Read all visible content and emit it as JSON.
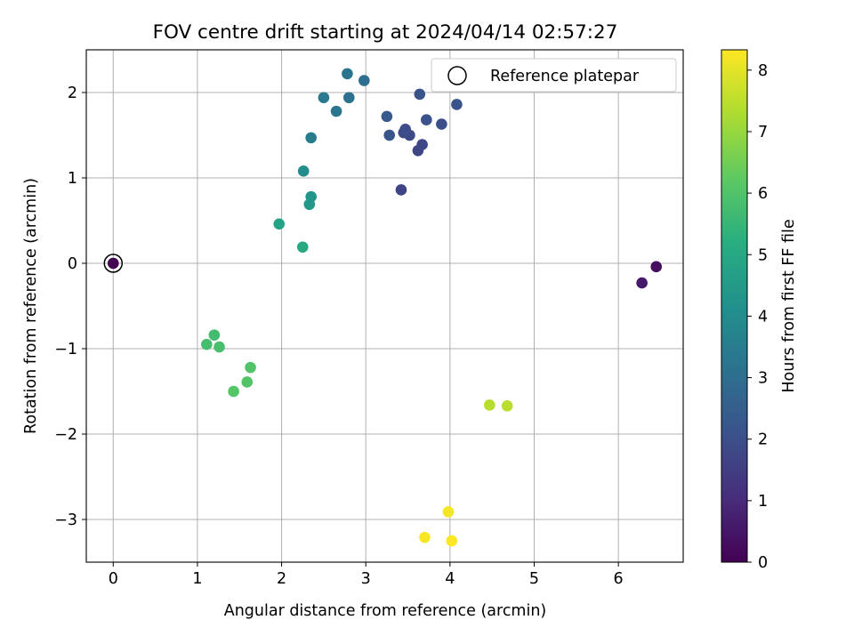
{
  "chart_data": {
    "type": "scatter",
    "title": "FOV centre drift starting at 2024/04/14 02:57:27",
    "xlabel": "Angular distance from reference (arcmin)",
    "ylabel": "Rotation from reference (arcmin)",
    "xlim": [
      -0.32,
      6.77
    ],
    "ylim": [
      -3.5,
      2.5
    ],
    "x_ticks": [
      0,
      1,
      2,
      3,
      4,
      5,
      6
    ],
    "y_ticks": [
      -3,
      -2,
      -1,
      0,
      1,
      2
    ],
    "x_tick_labels": [
      "0",
      "1",
      "2",
      "3",
      "4",
      "5",
      "6"
    ],
    "y_tick_labels": [
      "−3",
      "−2",
      "−1",
      "0",
      "1",
      "2"
    ],
    "grid": true,
    "legend": {
      "placement": "top-right",
      "entries": [
        "Reference platepar"
      ]
    },
    "colorbar": {
      "label": "Hours from first FF file",
      "range": [
        0,
        8.33
      ],
      "ticks": [
        0,
        1,
        2,
        3,
        4,
        5,
        6,
        7,
        8
      ],
      "tick_labels": [
        "0",
        "1",
        "2",
        "3",
        "4",
        "5",
        "6",
        "7",
        "8"
      ],
      "colormap": "viridis"
    },
    "reference": {
      "x": 0.0,
      "y": 0.0
    },
    "points": [
      {
        "x": 0.0,
        "y": 0.0,
        "hours": 0.0
      },
      {
        "x": 6.45,
        "y": -0.04,
        "hours": 0.3
      },
      {
        "x": 6.28,
        "y": -0.23,
        "hours": 0.6
      },
      {
        "x": 3.42,
        "y": 0.86,
        "hours": 1.7
      },
      {
        "x": 3.62,
        "y": 1.32,
        "hours": 1.75
      },
      {
        "x": 3.67,
        "y": 1.39,
        "hours": 1.8
      },
      {
        "x": 3.52,
        "y": 1.5,
        "hours": 1.85
      },
      {
        "x": 3.45,
        "y": 1.53,
        "hours": 1.9
      },
      {
        "x": 3.47,
        "y": 1.57,
        "hours": 1.95
      },
      {
        "x": 3.9,
        "y": 1.63,
        "hours": 2.0
      },
      {
        "x": 3.72,
        "y": 1.68,
        "hours": 2.05
      },
      {
        "x": 4.08,
        "y": 1.86,
        "hours": 2.1
      },
      {
        "x": 3.64,
        "y": 1.98,
        "hours": 2.15
      },
      {
        "x": 3.28,
        "y": 1.5,
        "hours": 2.2
      },
      {
        "x": 3.25,
        "y": 1.72,
        "hours": 2.3
      },
      {
        "x": 2.98,
        "y": 2.14,
        "hours": 3.0
      },
      {
        "x": 2.8,
        "y": 1.94,
        "hours": 3.1
      },
      {
        "x": 2.78,
        "y": 2.22,
        "hours": 3.15
      },
      {
        "x": 2.65,
        "y": 1.78,
        "hours": 3.25
      },
      {
        "x": 2.5,
        "y": 1.94,
        "hours": 3.35
      },
      {
        "x": 2.35,
        "y": 1.47,
        "hours": 3.5
      },
      {
        "x": 2.26,
        "y": 1.08,
        "hours": 4.0
      },
      {
        "x": 2.35,
        "y": 0.78,
        "hours": 4.3
      },
      {
        "x": 2.33,
        "y": 0.69,
        "hours": 4.4
      },
      {
        "x": 1.97,
        "y": 0.46,
        "hours": 4.8
      },
      {
        "x": 2.25,
        "y": 0.19,
        "hours": 5.0
      },
      {
        "x": 1.2,
        "y": -0.84,
        "hours": 5.75
      },
      {
        "x": 1.11,
        "y": -0.95,
        "hours": 5.8
      },
      {
        "x": 1.26,
        "y": -0.98,
        "hours": 5.85
      },
      {
        "x": 1.63,
        "y": -1.22,
        "hours": 6.0
      },
      {
        "x": 1.59,
        "y": -1.39,
        "hours": 6.05
      },
      {
        "x": 1.43,
        "y": -1.5,
        "hours": 6.1
      },
      {
        "x": 4.47,
        "y": -1.66,
        "hours": 7.4
      },
      {
        "x": 4.68,
        "y": -1.67,
        "hours": 7.45
      },
      {
        "x": 3.98,
        "y": -2.91,
        "hours": 8.2
      },
      {
        "x": 3.7,
        "y": -3.21,
        "hours": 8.25
      },
      {
        "x": 4.02,
        "y": -3.25,
        "hours": 8.3
      }
    ]
  }
}
